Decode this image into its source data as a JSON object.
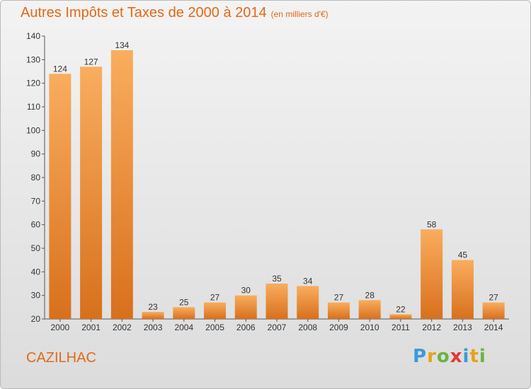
{
  "title": "Autres Impôts et Taxes de 2000 à 2014",
  "unit": "(en milliers d'€)",
  "commune": "CAZILHAC",
  "logo": {
    "letters": [
      "P",
      "r",
      "o",
      "x",
      "i",
      "t",
      "i"
    ],
    "colors": [
      "#3a9ad9",
      "#e8a21a",
      "#6cb33f",
      "#e03a2f",
      "#3a9ad9",
      "#e8a21a",
      "#6cb33f"
    ]
  },
  "colors": {
    "accent": "#e06a16",
    "bar_top": "#f9ad5e",
    "bar_bottom": "#d8701c"
  },
  "chart_data": {
    "type": "bar",
    "categories": [
      "2000",
      "2001",
      "2002",
      "2003",
      "2004",
      "2005",
      "2006",
      "2007",
      "2008",
      "2009",
      "2010",
      "2011",
      "2012",
      "2013",
      "2014"
    ],
    "values": [
      124,
      127,
      134,
      23,
      25,
      27,
      30,
      35,
      34,
      27,
      28,
      22,
      58,
      45,
      27
    ],
    "title": "Autres Impôts et Taxes de 2000 à 2014",
    "xlabel": "",
    "ylabel": "",
    "ylim": [
      20,
      140
    ],
    "yticks": [
      20,
      30,
      40,
      50,
      60,
      70,
      80,
      90,
      100,
      110,
      120,
      130,
      140
    ],
    "grid": false,
    "legend": "none"
  }
}
